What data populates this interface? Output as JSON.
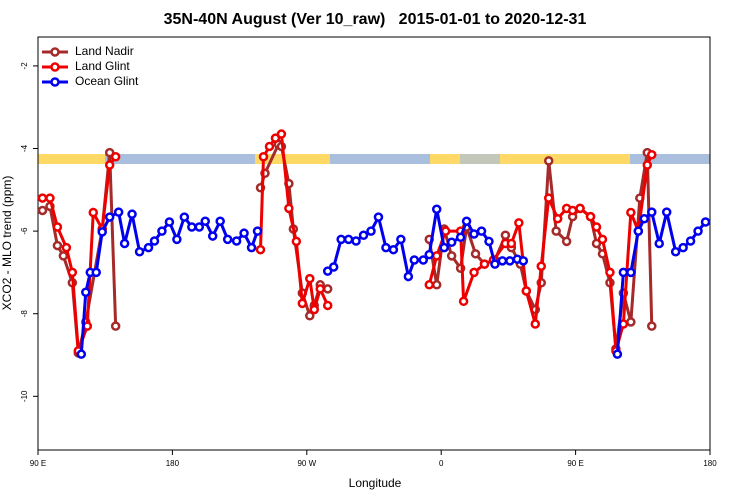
{
  "chart_data": {
    "type": "line",
    "title": "35N-40N August (Ver 10_raw)   2015-01-01 to 2020-12-31",
    "x_label": "Longitude",
    "y_label": "XCO2 - MLO trend (ppm)",
    "xlim": [
      90,
      540
    ],
    "xticks": [
      {
        "value": 90,
        "label": "90 E"
      },
      180,
      {
        "value": 270,
        "label": "90 W"
      },
      {
        "value": 360,
        "label": "0"
      },
      {
        "value": 450,
        "label": "90 E"
      },
      {
        "value": 540,
        "label": "180"
      }
    ],
    "ylim": [
      -11.3,
      -1.3
    ],
    "yticks": [
      -10,
      -8,
      -6,
      -4,
      -2
    ],
    "legend": "upper left",
    "series": [
      {
        "name": "Land Nadir",
        "color": "#a52a2a",
        "x": [
          93,
          98,
          103,
          107,
          113,
          117,
          122,
          133,
          138,
          142,
          null,
          239,
          242,
          251,
          253,
          258,
          261,
          267,
          272,
          275,
          279,
          284,
          null,
          352,
          357,
          362,
          367,
          373,
          377,
          383,
          389,
          396,
          403,
          407,
          413,
          417,
          423,
          427,
          432,
          437,
          444,
          448,
          453,
          460,
          464,
          468,
          473,
          477,
          482,
          487,
          493,
          498,
          501
        ],
        "values": [
          -5.5,
          -5.4,
          -6.35,
          -6.6,
          -7.25,
          -8.95,
          -8.2,
          -5.95,
          -4.1,
          -8.3,
          null,
          -4.95,
          -4.6,
          -3.9,
          -3.95,
          -4.85,
          -5.95,
          -7.5,
          -8.05,
          -7.8,
          -7.3,
          -7.4,
          null,
          -6.2,
          -7.3,
          -5.95,
          -6.6,
          -6.9,
          -5.9,
          -6.55,
          -6.8,
          -6.7,
          -6.1,
          -6.4,
          -6.8,
          -7.45,
          -7.9,
          -7.25,
          -4.3,
          -6.0,
          -6.25,
          -5.65,
          -5.45,
          -5.65,
          -6.3,
          -6.55,
          -7.25,
          -8.85,
          -7.5,
          -8.2,
          -5.2,
          -4.1,
          -8.3
        ]
      },
      {
        "name": "Land Glint",
        "color": "#ee0000",
        "x": [
          93,
          98,
          103,
          109,
          113,
          117,
          123,
          127,
          133,
          138,
          142,
          null,
          239,
          241,
          245,
          249,
          253,
          258,
          263,
          267,
          272,
          275,
          279,
          284,
          null,
          352,
          357,
          363,
          373,
          375,
          382,
          389,
          395,
          403,
          407,
          412,
          417,
          423,
          427,
          432,
          438,
          444,
          448,
          453,
          460,
          464,
          468,
          473,
          477,
          482,
          487,
          492,
          498,
          501
        ],
        "values": [
          -5.2,
          -5.2,
          -5.9,
          -6.4,
          -7.0,
          -8.9,
          -8.3,
          -5.55,
          -5.95,
          -4.4,
          -4.2,
          null,
          -6.45,
          -4.2,
          -3.95,
          -3.75,
          -3.65,
          -5.45,
          -6.25,
          -7.75,
          -7.15,
          -7.9,
          -7.4,
          -7.8,
          null,
          -7.3,
          -6.6,
          -6.0,
          -6.0,
          -7.7,
          -7.0,
          -6.8,
          -6.7,
          -6.3,
          -6.3,
          -5.8,
          -7.45,
          -8.25,
          -6.85,
          -5.2,
          -5.7,
          -5.45,
          -5.5,
          -5.45,
          -5.65,
          -5.9,
          -6.2,
          -7.0,
          -8.9,
          -8.25,
          -5.55,
          -6.0,
          -4.4,
          -4.15
        ]
      },
      {
        "name": "Ocean Glint",
        "color": "#0000ee",
        "x": [
          119,
          122,
          125,
          129,
          133,
          138,
          144,
          148,
          153,
          158,
          164,
          168,
          173,
          178,
          183,
          188,
          193,
          198,
          202,
          207,
          212,
          217,
          223,
          228,
          233,
          237,
          null,
          284,
          288,
          293,
          298,
          303,
          308,
          313,
          318,
          323,
          328,
          333,
          338,
          342,
          348,
          352,
          357,
          362,
          367,
          373,
          377,
          382,
          387,
          392,
          396,
          401,
          406,
          411,
          415,
          null,
          478,
          482,
          487,
          492,
          496,
          501,
          506,
          511,
          517,
          522,
          527,
          532,
          537
        ],
        "values": [
          -8.98,
          -7.48,
          -7.0,
          -7.0,
          -6.02,
          -5.66,
          -5.54,
          -6.3,
          -5.59,
          -6.5,
          -6.4,
          -6.24,
          -6.0,
          -5.78,
          -6.2,
          -5.66,
          -5.9,
          -5.9,
          -5.76,
          -6.12,
          -5.76,
          -6.2,
          -6.24,
          -6.05,
          -6.4,
          -6.0,
          null,
          -6.97,
          -6.87,
          -6.2,
          -6.2,
          -6.24,
          -6.1,
          -6.0,
          -5.66,
          -6.4,
          -6.45,
          -6.2,
          -7.1,
          -6.7,
          -6.7,
          -6.57,
          -5.47,
          -6.4,
          -6.27,
          -6.15,
          -5.76,
          -6.07,
          -6.0,
          -6.25,
          -6.8,
          -6.72,
          -6.72,
          -6.68,
          -6.72,
          null,
          -8.98,
          -7.0,
          -7.0,
          -6.0,
          -5.7,
          -5.54,
          -6.3,
          -5.54,
          -6.5,
          -6.4,
          -6.24,
          -6.0,
          -5.78
        ]
      }
    ]
  }
}
